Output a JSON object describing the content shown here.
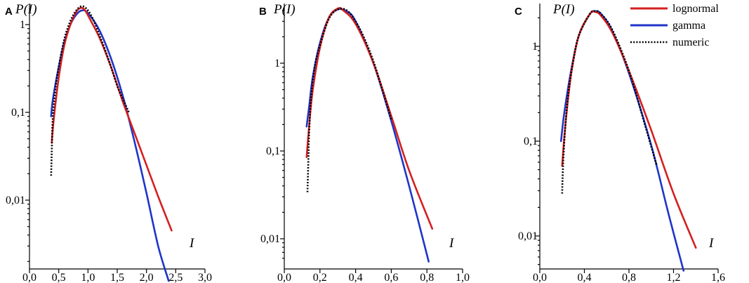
{
  "chart_data": [
    {
      "type": "line",
      "panel_label": "A",
      "ylabel": "P(I)",
      "xlabel": "I",
      "y_scale": "log",
      "xlim": [
        0.0,
        3.0
      ],
      "ylim": [
        0.0012,
        2.3
      ],
      "x_ticks": [
        "0,0",
        "0,5",
        "1,0",
        "1,5",
        "2,0",
        "2,5",
        "3,0"
      ],
      "y_ticks": [
        "1",
        "0,1",
        "0,01"
      ],
      "series": [
        {
          "name": "lognormal",
          "x": [
            0.38,
            0.42,
            0.5,
            0.6,
            0.7,
            0.8,
            0.88,
            0.95,
            1.05,
            1.2,
            1.4,
            1.6,
            1.8,
            2.0,
            2.2,
            2.43
          ],
          "y": [
            0.045,
            0.09,
            0.25,
            0.6,
            1.0,
            1.4,
            1.55,
            1.45,
            1.1,
            0.7,
            0.32,
            0.13,
            0.057,
            0.025,
            0.011,
            0.0045
          ]
        },
        {
          "name": "gamma",
          "x": [
            0.37,
            0.4,
            0.5,
            0.6,
            0.7,
            0.8,
            0.9,
            1.0,
            1.2,
            1.4,
            1.6,
            1.8,
            2.0,
            2.2,
            2.38
          ],
          "y": [
            0.09,
            0.14,
            0.33,
            0.65,
            1.0,
            1.3,
            1.45,
            1.35,
            0.85,
            0.4,
            0.15,
            0.045,
            0.012,
            0.003,
            0.0012
          ]
        },
        {
          "name": "numeric",
          "x": [
            0.37,
            0.38,
            0.4,
            0.45,
            0.5,
            0.6,
            0.7,
            0.8,
            0.9,
            1.0,
            1.1,
            1.2,
            1.3,
            1.4,
            1.5,
            1.6,
            1.7
          ],
          "y": [
            0.019,
            0.035,
            0.09,
            0.2,
            0.33,
            0.7,
            1.1,
            1.45,
            1.62,
            1.45,
            1.1,
            0.75,
            0.5,
            0.32,
            0.2,
            0.14,
            0.1
          ]
        }
      ]
    },
    {
      "type": "line",
      "panel_label": "B",
      "ylabel": "P(I)",
      "xlabel": "I",
      "y_scale": "log",
      "xlim": [
        0.0,
        1.0
      ],
      "ylim": [
        0.0055,
        5.2
      ],
      "x_ticks": [
        "0,0",
        "0,2",
        "0,4",
        "0,6",
        "0,8",
        "1,0"
      ],
      "y_ticks": [
        "1",
        "0,1",
        "0,01"
      ],
      "series": [
        {
          "name": "lognormal",
          "x": [
            0.125,
            0.14,
            0.16,
            0.2,
            0.25,
            0.3,
            0.33,
            0.4,
            0.5,
            0.6,
            0.7,
            0.83
          ],
          "y": [
            0.085,
            0.2,
            0.5,
            1.5,
            3.3,
            4.2,
            4.0,
            2.8,
            1.0,
            0.25,
            0.06,
            0.013
          ]
        },
        {
          "name": "gamma",
          "x": [
            0.125,
            0.14,
            0.16,
            0.2,
            0.25,
            0.3,
            0.35,
            0.4,
            0.5,
            0.6,
            0.7,
            0.81
          ],
          "y": [
            0.19,
            0.33,
            0.7,
            1.7,
            3.3,
            4.1,
            3.9,
            3.0,
            1.0,
            0.22,
            0.04,
            0.0055
          ]
        },
        {
          "name": "numeric",
          "x": [
            0.13,
            0.135,
            0.14,
            0.15,
            0.17,
            0.2,
            0.25,
            0.3,
            0.35,
            0.4,
            0.45,
            0.5,
            0.55,
            0.6
          ],
          "y": [
            0.034,
            0.08,
            0.18,
            0.4,
            0.9,
            1.6,
            3.2,
            4.1,
            4.0,
            3.0,
            1.9,
            1.05,
            0.5,
            0.23
          ]
        }
      ]
    },
    {
      "type": "line",
      "panel_label": "C",
      "ylabel": "P(I)",
      "xlabel": "I",
      "y_scale": "log",
      "xlim": [
        0.0,
        1.6
      ],
      "ylim": [
        0.0043,
        2.6
      ],
      "x_ticks": [
        "0,0",
        "0,4",
        "0,8",
        "1,2",
        "1,6"
      ],
      "y_ticks": [
        "1",
        "0,1",
        "0,01"
      ],
      "legend_position": "top-right",
      "series": [
        {
          "name": "lognormal",
          "color": "#d42020",
          "style": "solid",
          "x": [
            0.2,
            0.23,
            0.28,
            0.35,
            0.45,
            0.5,
            0.55,
            0.65,
            0.8,
            1.0,
            1.2,
            1.4
          ],
          "y": [
            0.055,
            0.15,
            0.5,
            1.3,
            2.2,
            2.3,
            2.1,
            1.4,
            0.55,
            0.13,
            0.028,
            0.0075
          ]
        },
        {
          "name": "gamma",
          "color": "#1f35c9",
          "style": "solid",
          "x": [
            0.19,
            0.22,
            0.28,
            0.35,
            0.45,
            0.5,
            0.55,
            0.65,
            0.8,
            1.0,
            1.15,
            1.29
          ],
          "y": [
            0.1,
            0.2,
            0.55,
            1.3,
            2.2,
            2.35,
            2.2,
            1.45,
            0.52,
            0.09,
            0.018,
            0.0043
          ]
        },
        {
          "name": "numeric",
          "color": "#000000",
          "style": "dotted",
          "x": [
            0.2,
            0.21,
            0.23,
            0.26,
            0.3,
            0.35,
            0.45,
            0.5,
            0.55,
            0.65,
            0.8,
            0.95,
            1.05
          ],
          "y": [
            0.028,
            0.06,
            0.15,
            0.35,
            0.7,
            1.3,
            2.2,
            2.35,
            2.2,
            1.5,
            0.55,
            0.14,
            0.055
          ]
        }
      ]
    }
  ]
}
